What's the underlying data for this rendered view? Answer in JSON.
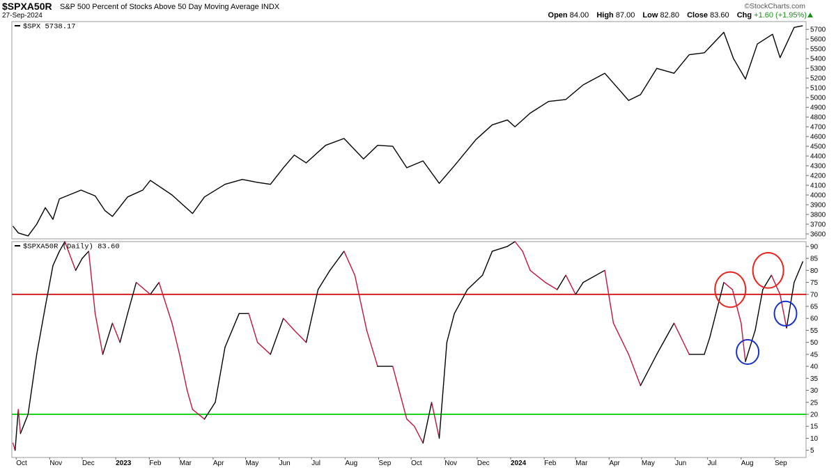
{
  "header": {
    "symbol": "$SPXA50R",
    "description": "S&P 500 Percent of Stocks Above 50 Day Moving Average INDX",
    "date": "27-Sep-2024",
    "brand": "StockCharts.com",
    "brand_prefix": "©",
    "open_label": "Open",
    "open_value": "84.00",
    "high_label": "High",
    "high_value": "87.00",
    "low_label": "Low",
    "low_value": "82.80",
    "close_label": "Close",
    "close_value": "83.60",
    "chg_label": "Chg",
    "chg_value": "+1.60 (+1.95%)",
    "chg_color": "#1a8f1a"
  },
  "chart_data": [
    {
      "type": "line",
      "legend": "$SPX 5738.17",
      "series": [
        {
          "name": "$SPX",
          "color": "#000000",
          "x": [
            "2022-09-28",
            "2022-10-03",
            "2022-10-12",
            "2022-10-20",
            "2022-10-28",
            "2022-11-04",
            "2022-11-10",
            "2022-11-30",
            "2022-12-13",
            "2022-12-22",
            "2022-12-29",
            "2023-01-12",
            "2023-01-26",
            "2023-02-02",
            "2023-02-22",
            "2023-03-08",
            "2023-03-13",
            "2023-03-24",
            "2023-04-12",
            "2023-04-28",
            "2023-05-12",
            "2023-05-24",
            "2023-06-05",
            "2023-06-15",
            "2023-06-26",
            "2023-07-14",
            "2023-07-31",
            "2023-08-18",
            "2023-08-31",
            "2023-09-14",
            "2023-09-27",
            "2023-10-12",
            "2023-10-27",
            "2023-11-10",
            "2023-11-30",
            "2023-12-15",
            "2023-12-29",
            "2024-01-05",
            "2024-01-19",
            "2024-02-05",
            "2024-02-21",
            "2024-03-08",
            "2024-03-28",
            "2024-04-19",
            "2024-04-30",
            "2024-05-15",
            "2024-05-31",
            "2024-06-14",
            "2024-06-28",
            "2024-07-16",
            "2024-07-25",
            "2024-08-05",
            "2024-08-16",
            "2024-08-30",
            "2024-09-06",
            "2024-09-19",
            "2024-09-27"
          ],
          "values": [
            3680,
            3610,
            3580,
            3700,
            3870,
            3750,
            3960,
            4050,
            3990,
            3840,
            3780,
            3980,
            4050,
            4150,
            4000,
            3860,
            3810,
            3980,
            4110,
            4160,
            4130,
            4110,
            4280,
            4410,
            4330,
            4510,
            4580,
            4370,
            4510,
            4500,
            4280,
            4350,
            4120,
            4300,
            4570,
            4720,
            4770,
            4700,
            4840,
            4960,
            4980,
            5130,
            5250,
            4970,
            5030,
            5300,
            5250,
            5440,
            5460,
            5670,
            5400,
            5190,
            5550,
            5650,
            5410,
            5720,
            5738
          ]
        }
      ],
      "ylim": [
        3550,
        5780
      ],
      "yticks": [
        3600,
        3700,
        3800,
        3900,
        4000,
        4100,
        4200,
        4300,
        4400,
        4500,
        4600,
        4700,
        4800,
        4900,
        5000,
        5100,
        5200,
        5300,
        5400,
        5500,
        5600,
        5700
      ]
    },
    {
      "type": "line",
      "legend": "$SPXA50R (Daily) 83.60",
      "series": [
        {
          "name": "$SPXA50R",
          "color_up": "#000000",
          "color_down": "#c0143c",
          "x": [
            "2022-09-28",
            "2022-09-30",
            "2022-10-03",
            "2022-10-05",
            "2022-10-12",
            "2022-10-20",
            "2022-10-28",
            "2022-11-04",
            "2022-11-10",
            "2022-11-15",
            "2022-11-25",
            "2022-12-01",
            "2022-12-07",
            "2022-12-13",
            "2022-12-20",
            "2022-12-29",
            "2023-01-05",
            "2023-01-12",
            "2023-01-20",
            "2023-02-02",
            "2023-02-10",
            "2023-02-22",
            "2023-03-01",
            "2023-03-08",
            "2023-03-13",
            "2023-03-24",
            "2023-04-03",
            "2023-04-12",
            "2023-04-25",
            "2023-05-04",
            "2023-05-12",
            "2023-05-24",
            "2023-06-05",
            "2023-06-15",
            "2023-06-26",
            "2023-07-07",
            "2023-07-18",
            "2023-07-31",
            "2023-08-10",
            "2023-08-21",
            "2023-08-31",
            "2023-09-14",
            "2023-09-27",
            "2023-10-04",
            "2023-10-12",
            "2023-10-20",
            "2023-10-27",
            "2023-11-03",
            "2023-11-10",
            "2023-11-22",
            "2023-12-06",
            "2023-12-15",
            "2023-12-29",
            "2024-01-05",
            "2024-01-12",
            "2024-01-19",
            "2024-02-02",
            "2024-02-13",
            "2024-02-21",
            "2024-03-01",
            "2024-03-08",
            "2024-03-28",
            "2024-04-05",
            "2024-04-19",
            "2024-04-30",
            "2024-05-15",
            "2024-05-31",
            "2024-06-14",
            "2024-06-28",
            "2024-07-03",
            "2024-07-16",
            "2024-07-24",
            "2024-08-01",
            "2024-08-05",
            "2024-08-14",
            "2024-08-21",
            "2024-08-29",
            "2024-09-06",
            "2024-09-12",
            "2024-09-19",
            "2024-09-27"
          ],
          "values": [
            8,
            5,
            22,
            12,
            20,
            45,
            65,
            82,
            88,
            92,
            80,
            85,
            88,
            62,
            45,
            58,
            50,
            62,
            75,
            70,
            75,
            58,
            45,
            30,
            22,
            18,
            25,
            48,
            62,
            62,
            50,
            45,
            60,
            55,
            50,
            72,
            80,
            88,
            78,
            55,
            40,
            40,
            18,
            15,
            8,
            25,
            10,
            50,
            62,
            72,
            78,
            88,
            90,
            92,
            88,
            80,
            75,
            72,
            78,
            70,
            75,
            80,
            58,
            45,
            32,
            45,
            58,
            45,
            45,
            52,
            75,
            72,
            58,
            42,
            55,
            72,
            78,
            70,
            56,
            75,
            83.6
          ]
        }
      ],
      "reference_lines": [
        {
          "value": 70,
          "color": "#cc0000"
        },
        {
          "value": 20,
          "color": "#00cc00"
        }
      ],
      "annotations": [
        {
          "shape": "circle",
          "color": "#e8241c",
          "x": "2024-07-22",
          "y": 72
        },
        {
          "shape": "circle",
          "color": "#e8241c",
          "x": "2024-08-26",
          "y": 80
        },
        {
          "shape": "circle",
          "color": "#1530cc",
          "x": "2024-08-07",
          "y": 46
        },
        {
          "shape": "circle",
          "color": "#1530cc",
          "x": "2024-09-11",
          "y": 62
        }
      ],
      "ylim": [
        2,
        92
      ],
      "yticks": [
        5,
        10,
        15,
        20,
        25,
        30,
        35,
        40,
        45,
        50,
        55,
        60,
        65,
        70,
        75,
        80,
        85,
        90
      ]
    }
  ],
  "x_axis": {
    "range": [
      "2022-09-27",
      "2024-09-30"
    ],
    "ticks": [
      {
        "label": "Oct",
        "date": "2022-10-01",
        "bold": false
      },
      {
        "label": "Nov",
        "date": "2022-11-01",
        "bold": false
      },
      {
        "label": "Dec",
        "date": "2022-12-01",
        "bold": false
      },
      {
        "label": "2023",
        "date": "2023-01-01",
        "bold": true
      },
      {
        "label": "Feb",
        "date": "2023-02-01",
        "bold": false
      },
      {
        "label": "Mar",
        "date": "2023-03-01",
        "bold": false
      },
      {
        "label": "Apr",
        "date": "2023-04-01",
        "bold": false
      },
      {
        "label": "May",
        "date": "2023-05-01",
        "bold": false
      },
      {
        "label": "Jun",
        "date": "2023-06-01",
        "bold": false
      },
      {
        "label": "Jul",
        "date": "2023-07-01",
        "bold": false
      },
      {
        "label": "Aug",
        "date": "2023-08-01",
        "bold": false
      },
      {
        "label": "Sep",
        "date": "2023-09-01",
        "bold": false
      },
      {
        "label": "Oct",
        "date": "2023-10-01",
        "bold": false
      },
      {
        "label": "Nov",
        "date": "2023-11-01",
        "bold": false
      },
      {
        "label": "Dec",
        "date": "2023-12-01",
        "bold": false
      },
      {
        "label": "2024",
        "date": "2024-01-01",
        "bold": true
      },
      {
        "label": "Feb",
        "date": "2024-02-01",
        "bold": false
      },
      {
        "label": "Mar",
        "date": "2024-03-01",
        "bold": false
      },
      {
        "label": "Apr",
        "date": "2024-04-01",
        "bold": false
      },
      {
        "label": "May",
        "date": "2024-05-01",
        "bold": false
      },
      {
        "label": "Jun",
        "date": "2024-06-01",
        "bold": false
      },
      {
        "label": "Jul",
        "date": "2024-07-01",
        "bold": false
      },
      {
        "label": "Aug",
        "date": "2024-08-01",
        "bold": false
      },
      {
        "label": "Sep",
        "date": "2024-09-01",
        "bold": false
      }
    ]
  }
}
